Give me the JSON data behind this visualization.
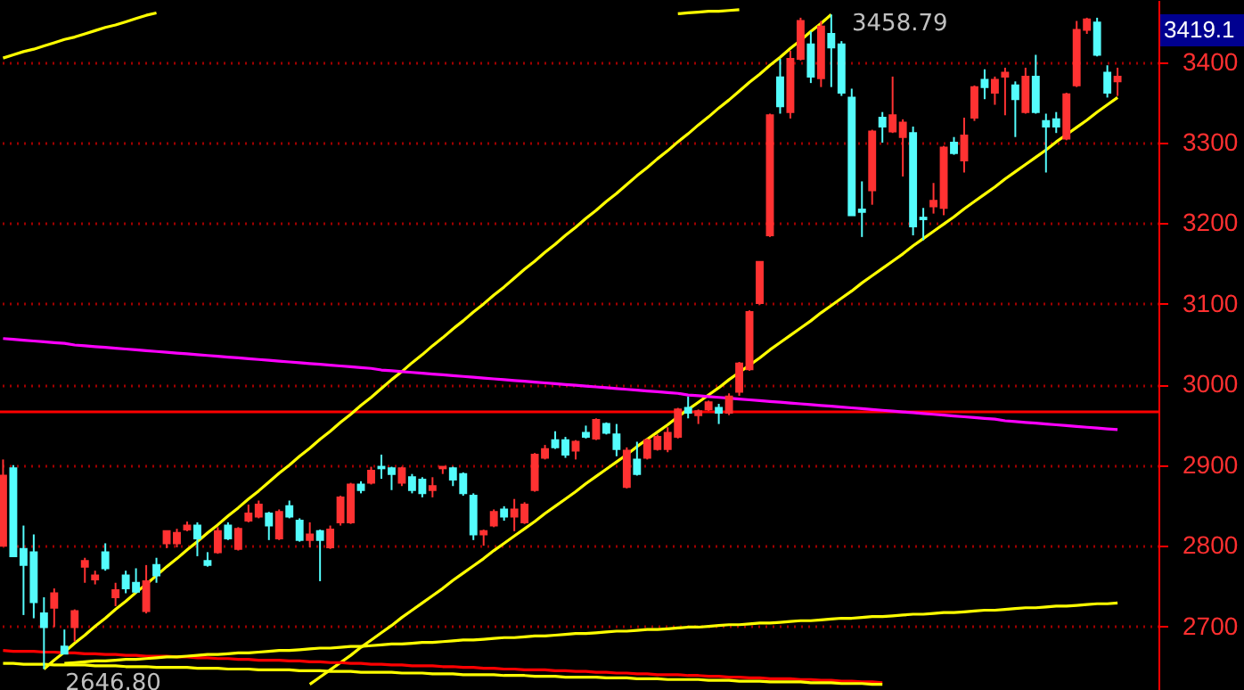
{
  "chart_data": {
    "type": "candlestick",
    "categories": [
      null,
      null,
      null,
      null,
      null,
      null,
      null,
      null,
      null,
      null,
      null,
      null,
      null,
      null,
      null,
      null,
      null,
      null,
      null,
      null,
      null,
      null,
      null,
      null,
      null,
      null,
      null,
      null,
      null,
      null,
      null,
      null,
      null,
      null,
      null,
      null,
      null,
      null,
      null,
      null,
      null,
      null,
      null,
      null,
      null,
      null,
      null,
      null,
      null,
      null,
      null,
      null,
      null,
      null,
      null,
      null,
      null,
      null,
      null,
      null,
      null,
      null,
      null,
      null,
      null,
      null,
      null,
      null,
      null,
      null,
      null,
      null,
      null,
      null,
      null,
      null,
      null,
      null,
      null,
      null,
      null,
      null,
      null,
      null,
      null,
      null,
      null,
      null,
      null,
      null,
      null,
      null,
      null,
      null,
      null,
      null,
      null,
      null,
      null,
      null,
      null,
      null,
      null,
      null,
      null,
      null,
      null,
      null,
      null,
      null
    ],
    "ohlc": [
      [
        2800,
        2907,
        2800,
        2887
      ],
      [
        2896,
        2900,
        2787,
        2787
      ],
      [
        2796,
        2825,
        2714,
        2776
      ],
      [
        2792,
        2814,
        2710,
        2730
      ],
      [
        2716,
        2736,
        2647,
        2699
      ],
      [
        2723,
        2747,
        2699,
        2741
      ],
      [
        2675,
        2696,
        2666,
        2666
      ],
      [
        2699,
        2721,
        2681,
        2719
      ],
      [
        2774,
        2785,
        2754,
        2781
      ],
      [
        2758,
        2769,
        2752,
        2763
      ],
      [
        2792,
        2803,
        2769,
        2772
      ],
      [
        2736,
        2754,
        2725,
        2745
      ],
      [
        2763,
        2769,
        2741,
        2747
      ],
      [
        2754,
        2772,
        2741,
        2743
      ],
      [
        2719,
        2776,
        2716,
        2756
      ],
      [
        2776,
        2785,
        2754,
        2763
      ],
      [
        2803,
        2818,
        2797,
        2818
      ],
      [
        2803,
        2821,
        2798,
        2816
      ],
      [
        2820,
        2830,
        2818,
        2825
      ],
      [
        2825,
        2829,
        2787,
        2809
      ],
      [
        2781,
        2792,
        2774,
        2776
      ],
      [
        2792,
        2823,
        2790,
        2818
      ],
      [
        2825,
        2829,
        2807,
        2809
      ],
      [
        2796,
        2823,
        2794,
        2821
      ],
      [
        2831,
        2851,
        2829,
        2840
      ],
      [
        2836,
        2856,
        2834,
        2851
      ],
      [
        2840,
        2842,
        2807,
        2825
      ],
      [
        2809,
        2845,
        2807,
        2842
      ],
      [
        2849,
        2856,
        2834,
        2836
      ],
      [
        2831,
        2834,
        2805,
        2807
      ],
      [
        2807,
        2829,
        2798,
        2814
      ],
      [
        2818,
        2820,
        2756,
        2807
      ],
      [
        2798,
        2825,
        2796,
        2820
      ],
      [
        2829,
        2862,
        2825,
        2860
      ],
      [
        2829,
        2878,
        2827,
        2876
      ],
      [
        2876,
        2880,
        2865,
        2869
      ],
      [
        2878,
        2898,
        2876,
        2893
      ],
      [
        2898,
        2913,
        2883,
        2896
      ],
      [
        2896,
        2898,
        2869,
        2889
      ],
      [
        2878,
        2898,
        2874,
        2896
      ],
      [
        2885,
        2889,
        2865,
        2869
      ],
      [
        2882,
        2885,
        2860,
        2865
      ],
      [
        2869,
        2885,
        2860,
        2874
      ],
      [
        2896,
        2898,
        2889,
        2898
      ],
      [
        2896,
        2898,
        2874,
        2882
      ],
      [
        2889,
        2891,
        2862,
        2865
      ],
      [
        2862,
        2865,
        2807,
        2814
      ],
      [
        2814,
        2820,
        2800,
        2818
      ],
      [
        2825,
        2845,
        2823,
        2842
      ],
      [
        2845,
        2849,
        2831,
        2836
      ],
      [
        2836,
        2858,
        2818,
        2845
      ],
      [
        2829,
        2854,
        2827,
        2851
      ],
      [
        2869,
        2915,
        2867,
        2913
      ],
      [
        2909,
        2925,
        2907,
        2920
      ],
      [
        2931,
        2942,
        2920,
        2922
      ],
      [
        2931,
        2935,
        2909,
        2913
      ],
      [
        2918,
        2931,
        2907,
        2929
      ],
      [
        2940,
        2949,
        2933,
        2935
      ],
      [
        2933,
        2958,
        2931,
        2956
      ],
      [
        2951,
        2953,
        2938,
        2940
      ],
      [
        2938,
        2951,
        2911,
        2920
      ],
      [
        2873,
        2922,
        2871,
        2918
      ],
      [
        2907,
        2929,
        2887,
        2889
      ],
      [
        2909,
        2933,
        2907,
        2931
      ],
      [
        2920,
        2938,
        2918,
        2935
      ],
      [
        2920,
        2947,
        2916,
        2940
      ],
      [
        2935,
        2971,
        2933,
        2969
      ],
      [
        2971,
        2985,
        2958,
        2965
      ],
      [
        2962,
        2969,
        2951,
        2967
      ],
      [
        2969,
        2980,
        2967,
        2978
      ],
      [
        2971,
        2976,
        2951,
        2965
      ],
      [
        2965,
        2989,
        2962,
        2985
      ],
      [
        2991,
        3028,
        2986,
        3026
      ],
      [
        3019,
        3092,
        3017,
        3090
      ],
      [
        3101,
        3152,
        3099,
        3152
      ],
      [
        3185,
        3336,
        3183,
        3334
      ],
      [
        3381,
        3404,
        3336,
        3345
      ],
      [
        3338,
        3414,
        3330,
        3404
      ],
      [
        3404,
        3455,
        3402,
        3451
      ],
      [
        3422,
        3438,
        3374,
        3382
      ],
      [
        3380,
        3451,
        3369,
        3444
      ],
      [
        3435,
        3459,
        3369,
        3418
      ],
      [
        3422,
        3426,
        3358,
        3362
      ],
      [
        3356,
        3367,
        3210,
        3210
      ],
      [
        3217,
        3252,
        3183,
        3214
      ],
      [
        3241,
        3316,
        3223,
        3314
      ],
      [
        3331,
        3338,
        3300,
        3320
      ],
      [
        3314,
        3382,
        3312,
        3334
      ],
      [
        3307,
        3329,
        3258,
        3325
      ],
      [
        3312,
        3320,
        3185,
        3196
      ],
      [
        3207,
        3219,
        3179,
        3205
      ],
      [
        3221,
        3250,
        3212,
        3228
      ],
      [
        3219,
        3296,
        3210,
        3294
      ],
      [
        3300,
        3307,
        3285,
        3287
      ],
      [
        3278,
        3331,
        3263,
        3309
      ],
      [
        3331,
        3371,
        3327,
        3369
      ],
      [
        3378,
        3391,
        3354,
        3369
      ],
      [
        3362,
        3382,
        3347,
        3378
      ],
      [
        3382,
        3393,
        3334,
        3387
      ],
      [
        3371,
        3376,
        3307,
        3354
      ],
      [
        3338,
        3393,
        3336,
        3382
      ],
      [
        3382,
        3409,
        3336,
        3338
      ],
      [
        3327,
        3336,
        3263,
        3320
      ],
      [
        3329,
        3338,
        3312,
        3320
      ],
      [
        3305,
        3362,
        3303,
        3360
      ],
      [
        3371,
        3451,
        3369,
        3440
      ],
      [
        3440,
        3455,
        3435,
        3453
      ],
      [
        3449,
        3455,
        3407,
        3409
      ],
      [
        3387,
        3396,
        3356,
        3362
      ],
      [
        3376,
        3393,
        3358,
        3382
      ]
    ],
    "series": [
      {
        "type": "line",
        "color": "#ffff00",
        "values": [
          null,
          null,
          null,
          null,
          2647,
          2658,
          2668,
          2679,
          2689,
          2700,
          2710,
          2721,
          2731,
          2742,
          2752,
          2763,
          2774,
          2784,
          2795,
          2805,
          2816,
          2826,
          2837,
          2847,
          2858,
          2868,
          2879,
          2890,
          2900,
          2911,
          2921,
          2932,
          2942,
          2953,
          2963,
          2974,
          2984,
          2995,
          3006,
          3016,
          3027,
          3037,
          3048,
          3058,
          3069,
          3079,
          3090,
          3100,
          3111,
          3121,
          3132,
          3143,
          3153,
          3164,
          3174,
          3185,
          3195,
          3206,
          3216,
          3227,
          3237,
          3248,
          3259,
          3269,
          3280,
          3290,
          3301,
          3311,
          3322,
          3332,
          3343,
          3353,
          3364,
          3375,
          3385,
          3396,
          3406,
          3417,
          3427,
          3438,
          3448,
          3459,
          null,
          null,
          null,
          null,
          null,
          null,
          null,
          null,
          null,
          null,
          null,
          null,
          null,
          null,
          null,
          null,
          null,
          null,
          null,
          null,
          null,
          null,
          null,
          null,
          null,
          null,
          null,
          null
        ]
      },
      {
        "type": "line",
        "color": "#ffff00",
        "values": [
          null,
          null,
          null,
          null,
          null,
          null,
          null,
          null,
          null,
          null,
          null,
          null,
          null,
          null,
          null,
          null,
          null,
          null,
          null,
          null,
          null,
          null,
          null,
          null,
          null,
          null,
          null,
          null,
          null,
          null,
          2628,
          2637,
          2646,
          2655,
          2664,
          2674,
          2683,
          2692,
          2701,
          2711,
          2720,
          2729,
          2738,
          2747,
          2757,
          2766,
          2775,
          2784,
          2794,
          2803,
          2812,
          2821,
          2830,
          2840,
          2849,
          2858,
          2867,
          2877,
          2886,
          2895,
          2904,
          2913,
          2923,
          2932,
          2941,
          2950,
          2960,
          2969,
          2978,
          2987,
          2996,
          3006,
          3015,
          3024,
          3033,
          3043,
          3052,
          3061,
          3070,
          3079,
          3089,
          3098,
          3107,
          3116,
          3126,
          3135,
          3144,
          3153,
          3162,
          3172,
          3181,
          3190,
          3199,
          3208,
          3218,
          3227,
          3236,
          3245,
          3255,
          3264,
          3273,
          3282,
          3291,
          3301,
          3310,
          3319,
          3328,
          3338,
          3347,
          3356
        ]
      },
      {
        "type": "line",
        "color": "#ffff00",
        "values": [
          3405,
          3409,
          3413,
          3416,
          3420,
          3424,
          3428,
          3431,
          3435,
          3439,
          3443,
          3446,
          3450,
          3454,
          3458,
          3461,
          null,
          null,
          null,
          null,
          null,
          null,
          null,
          null,
          null,
          null,
          null,
          null,
          null,
          null,
          null,
          null,
          null,
          null,
          null,
          null,
          null,
          null,
          null,
          null,
          null,
          null,
          null,
          null,
          null,
          null,
          null,
          null,
          null,
          null,
          null,
          null,
          null,
          null,
          null,
          null,
          null,
          null,
          null,
          null,
          null,
          null,
          null,
          null,
          null,
          null,
          null,
          null,
          null,
          null,
          null,
          null,
          null,
          null,
          null,
          null,
          null,
          null,
          null,
          null,
          null,
          null,
          null,
          null,
          null,
          null,
          null,
          null,
          null,
          null,
          null,
          null,
          null,
          null,
          null,
          null,
          null,
          null,
          null,
          null,
          null,
          null,
          null,
          null,
          null,
          null,
          null,
          null,
          null,
          null
        ]
      },
      {
        "type": "line",
        "color": "#ffff00",
        "values": [
          null,
          null,
          null,
          null,
          null,
          null,
          null,
          null,
          null,
          null,
          null,
          null,
          null,
          null,
          null,
          null,
          null,
          null,
          null,
          null,
          null,
          null,
          null,
          null,
          null,
          null,
          null,
          null,
          null,
          null,
          null,
          null,
          null,
          null,
          null,
          null,
          null,
          null,
          null,
          null,
          null,
          null,
          null,
          null,
          null,
          null,
          null,
          null,
          null,
          null,
          null,
          null,
          null,
          null,
          null,
          null,
          null,
          null,
          null,
          null,
          null,
          null,
          null,
          null,
          null,
          null,
          3460,
          3461,
          3462,
          3463,
          3463,
          3464,
          3465,
          null,
          null,
          null,
          null,
          null,
          null,
          null,
          null,
          null,
          null,
          null,
          null,
          null,
          null,
          null,
          null,
          null,
          null,
          null,
          null,
          null,
          null,
          null,
          null,
          null,
          null,
          null,
          null,
          null,
          null,
          null,
          null,
          null,
          null,
          null,
          null,
          null
        ]
      },
      {
        "type": "line",
        "color": "#ff00ff",
        "values": [
          3057,
          3056,
          3055,
          3054,
          3053,
          3052,
          3051,
          3049,
          3048,
          3047,
          3046,
          3045,
          3044,
          3043,
          3042,
          3041,
          3040,
          3039,
          3038,
          3037,
          3036,
          3035,
          3034,
          3033,
          3032,
          3031,
          3030,
          3029,
          3028,
          3027,
          3026,
          3025,
          3024,
          3023,
          3022,
          3021,
          3020,
          3018,
          3017,
          3016,
          3015,
          3014,
          3013,
          3012,
          3011,
          3010,
          3009,
          3008,
          3007,
          3006,
          3005,
          3004,
          3003,
          3002,
          3001,
          3000,
          2999,
          2998,
          2997,
          2996,
          2995,
          2994,
          2993,
          2992,
          2991,
          2990,
          2989,
          2987,
          2986,
          2985,
          2984,
          2983,
          2982,
          2981,
          2980,
          2979,
          2978,
          2977,
          2976,
          2975,
          2974,
          2973,
          2972,
          2971,
          2970,
          2969,
          2968,
          2967,
          2966,
          2965,
          2964,
          2963,
          2962,
          2961,
          2960,
          2959,
          2958,
          2957,
          2955,
          2954,
          2953,
          2952,
          2951,
          2950,
          2949,
          2948,
          2947,
          2946,
          2945,
          2944
        ]
      },
      {
        "type": "line",
        "color": "#ff0000",
        "values": [
          2670,
          2669,
          2669,
          2669,
          2668,
          2668,
          2667,
          2667,
          2666,
          2666,
          2665,
          2665,
          2664,
          2664,
          2663,
          2663,
          2663,
          2662,
          2662,
          2661,
          2661,
          2660,
          2660,
          2659,
          2659,
          2658,
          2658,
          2658,
          2657,
          2657,
          2656,
          2656,
          2655,
          2655,
          2654,
          2654,
          2653,
          2653,
          2652,
          2652,
          2651,
          2651,
          2651,
          2650,
          2650,
          2649,
          2649,
          2648,
          2648,
          2647,
          2647,
          2646,
          2646,
          2646,
          2645,
          2645,
          2644,
          2644,
          2643,
          2643,
          2642,
          2642,
          2641,
          2641,
          2640,
          2640,
          2640,
          2639,
          2639,
          2638,
          2638,
          2637,
          2637,
          2636,
          2636,
          2635,
          2635,
          2635,
          2634,
          2634,
          2633,
          2633,
          2632,
          2632,
          2631,
          2631,
          2630,
          null,
          null,
          null,
          null,
          null,
          null,
          null,
          null,
          null,
          null,
          null,
          null,
          null,
          null,
          null,
          null,
          null,
          null,
          null,
          null,
          null,
          null,
          null
        ]
      },
      {
        "type": "line",
        "color": "#ffff00",
        "values": [
          2654,
          2654,
          2653,
          2653,
          2653,
          2652,
          2652,
          2652,
          2652,
          2651,
          2651,
          2651,
          2650,
          2650,
          2650,
          2649,
          2649,
          2649,
          2649,
          2648,
          2648,
          2648,
          2647,
          2647,
          2647,
          2646,
          2646,
          2646,
          2646,
          2645,
          2645,
          2645,
          2644,
          2644,
          2644,
          2643,
          2643,
          2643,
          2643,
          2642,
          2642,
          2642,
          2641,
          2641,
          2641,
          2640,
          2640,
          2640,
          2640,
          2639,
          2639,
          2639,
          2638,
          2638,
          2638,
          2637,
          2637,
          2637,
          2637,
          2636,
          2636,
          2636,
          2635,
          2635,
          2635,
          2634,
          2634,
          2634,
          2634,
          2633,
          2633,
          2633,
          2632,
          2632,
          2632,
          2631,
          2631,
          2631,
          2631,
          2630,
          2630,
          2630,
          2629,
          2629,
          2629,
          2628,
          2628,
          null,
          null,
          null,
          null,
          null,
          null,
          null,
          null,
          null,
          null,
          null,
          null,
          null,
          null,
          null,
          null,
          null,
          null,
          null,
          null,
          null,
          null,
          null
        ]
      },
      {
        "type": "line",
        "color": "#ffff00",
        "values": [
          null,
          null,
          null,
          null,
          null,
          null,
          2654,
          2655,
          2656,
          2657,
          2657,
          2658,
          2659,
          2659,
          2660,
          2661,
          2662,
          2662,
          2663,
          2664,
          2665,
          2665,
          2666,
          2667,
          2667,
          2668,
          2669,
          2670,
          2670,
          2671,
          2672,
          2673,
          2673,
          2674,
          2675,
          2675,
          2676,
          2677,
          2678,
          2678,
          2679,
          2680,
          2680,
          2681,
          2682,
          2683,
          2683,
          2684,
          2685,
          2686,
          2686,
          2687,
          2688,
          2688,
          2689,
          2690,
          2691,
          2691,
          2692,
          2693,
          2694,
          2694,
          2695,
          2696,
          2696,
          2697,
          2698,
          2699,
          2699,
          2700,
          2701,
          2702,
          2702,
          2703,
          2704,
          2704,
          2705,
          2706,
          2707,
          2707,
          2708,
          2709,
          2710,
          2710,
          2711,
          2712,
          2712,
          2713,
          2714,
          2715,
          2715,
          2716,
          2717,
          2717,
          2718,
          2719,
          2720,
          2720,
          2721,
          2722,
          2723,
          2723,
          2724,
          2725,
          2725,
          2726,
          2727,
          2728,
          2728,
          2729
        ]
      }
    ],
    "ref_lines": [
      {
        "axis": "y",
        "value": 2966,
        "color": "#ff0000"
      }
    ],
    "annotations": [
      "3458.79",
      {
        "text": "2646.80",
        "y": 2647
      },
      "3419.1"
    ],
    "ylim": [
      2621,
      3477
    ],
    "yticks": [
      2700,
      2800,
      2900,
      3000,
      3100,
      3200,
      3300,
      3400
    ],
    "grid": "y",
    "tick_labels": "y",
    "marker": "none"
  }
}
